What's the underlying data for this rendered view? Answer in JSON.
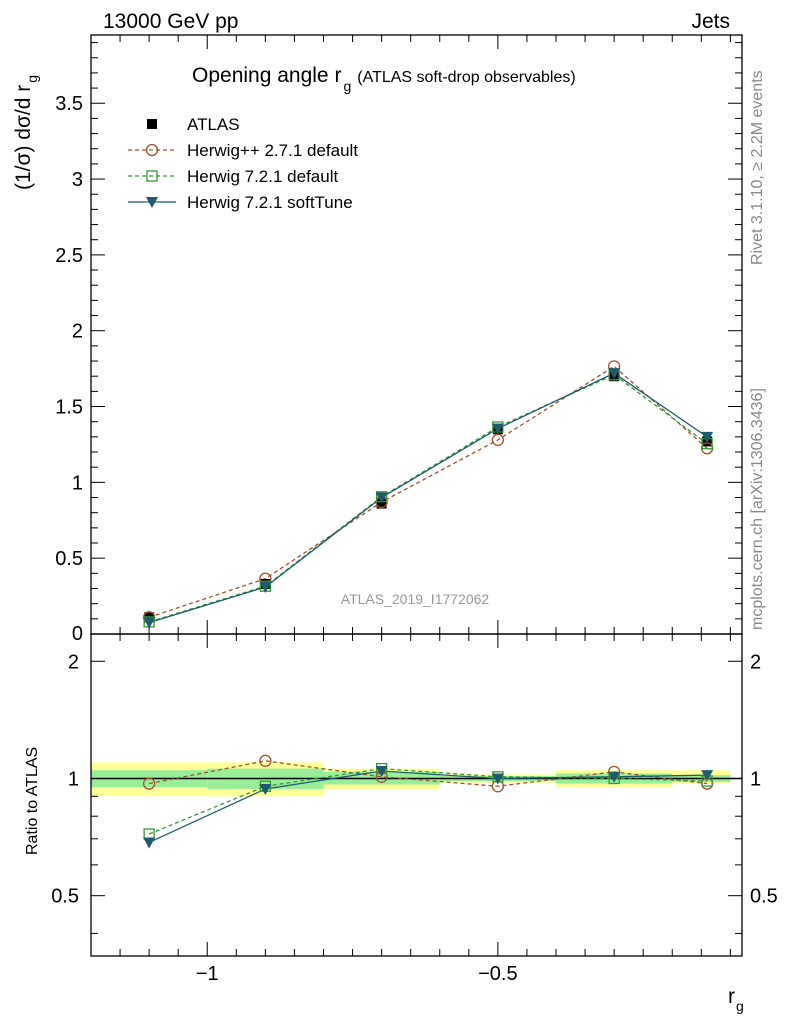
{
  "header": {
    "left": "13000 GeV pp",
    "right": "Jets"
  },
  "side_labels": {
    "rivet": "Rivet 3.1.10, ≥ 2.2M events",
    "mcplots": "mcplots.cern.ch [arXiv:1306.3436]"
  },
  "chart_data": [
    {
      "type": "line",
      "title": "Opening angle r",
      "title_sub": "g",
      "title_note": "(ATLAS soft-drop observables)",
      "watermark": "ATLAS_2019_I1772062",
      "ylabel": "(1/σ) dσ/d r",
      "ylabel_sub": "g",
      "xlim": [
        -1.2,
        -0.08
      ],
      "ylim": [
        0,
        3.95
      ],
      "yticks": [
        0.5,
        1,
        1.5,
        2,
        2.5,
        3,
        3.5
      ],
      "ytick_labels": [
        "0.5",
        "1",
        "1.5",
        "2",
        "2.5",
        "3",
        "3.5"
      ],
      "ytick_zero_label": "0",
      "grid": false,
      "legend_position": "top-left",
      "x": [
        -1.1,
        -0.9,
        -0.7,
        -0.5,
        -0.3,
        -0.14
      ],
      "series": [
        {
          "name": "ATLAS",
          "color": "#000000",
          "marker": "square-filled",
          "line": "none",
          "values": [
            0.11,
            0.33,
            0.86,
            1.35,
            1.7,
            1.27
          ]
        },
        {
          "name": "Herwig++ 2.7.1 default",
          "color": "#a0522d",
          "marker": "circle-open",
          "line": "dashed",
          "values": [
            0.11,
            0.365,
            0.87,
            1.28,
            1.765,
            1.225
          ]
        },
        {
          "name": "Herwig 7.2.1 default",
          "color": "#339933",
          "marker": "square-open",
          "line": "dashed",
          "values": [
            0.08,
            0.315,
            0.905,
            1.365,
            1.71,
            1.255
          ]
        },
        {
          "name": "Herwig 7.2.1 softTune",
          "color": "#1f5a6e",
          "marker": "triangle-down",
          "line": "solid",
          "values": [
            0.075,
            0.31,
            0.9,
            1.355,
            1.72,
            1.3
          ]
        }
      ]
    },
    {
      "type": "line",
      "ylabel": "Ratio to ATLAS",
      "xlabel": "r",
      "xlabel_sub": "g",
      "xlim": [
        -1.2,
        -0.08
      ],
      "ylim": [
        0.35,
        2.35
      ],
      "yticks": [
        0.5,
        1,
        2
      ],
      "ytick_labels": [
        "0.5",
        "1",
        "2"
      ],
      "xticks": [
        -1,
        -0.5
      ],
      "xtick_labels": [
        "−1",
        "−0.5"
      ],
      "bands": [
        {
          "x0": -1.2,
          "x1": -1.0,
          "inner": [
            0.95,
            1.05
          ],
          "outer": [
            0.9,
            1.1
          ]
        },
        {
          "x0": -1.0,
          "x1": -0.8,
          "inner": [
            0.94,
            1.06
          ],
          "outer": [
            0.9,
            1.1
          ]
        },
        {
          "x0": -0.8,
          "x1": -0.6,
          "inner": [
            0.965,
            1.04
          ],
          "outer": [
            0.94,
            1.06
          ]
        },
        {
          "x0": -0.6,
          "x1": -0.4,
          "inner": [
            0.985,
            1.015
          ],
          "outer": [
            0.975,
            1.025
          ]
        },
        {
          "x0": -0.4,
          "x1": -0.2,
          "inner": [
            0.97,
            1.03
          ],
          "outer": [
            0.95,
            1.05
          ]
        },
        {
          "x0": -0.2,
          "x1": -0.1,
          "inner": [
            0.98,
            1.02
          ],
          "outer": [
            0.97,
            1.05
          ]
        }
      ],
      "band_colors": {
        "inner": "#99ee99",
        "outer": "#ffff99"
      },
      "x": [
        -1.1,
        -0.9,
        -0.7,
        -0.5,
        -0.3,
        -0.14
      ],
      "series": [
        {
          "name": "Herwig++ 2.7.1 default",
          "color": "#a0522d",
          "marker": "circle-open",
          "line": "dashed",
          "values": [
            0.97,
            1.11,
            1.01,
            0.955,
            1.04,
            0.97
          ]
        },
        {
          "name": "Herwig 7.2.1 default",
          "color": "#339933",
          "marker": "square-open",
          "line": "dashed",
          "values": [
            0.72,
            0.955,
            1.06,
            1.01,
            1.0,
            0.985
          ]
        },
        {
          "name": "Herwig 7.2.1 softTune",
          "color": "#1f5a6e",
          "marker": "triangle-down",
          "line": "solid",
          "values": [
            0.685,
            0.94,
            1.045,
            1.0,
            1.01,
            1.02
          ]
        }
      ]
    }
  ]
}
